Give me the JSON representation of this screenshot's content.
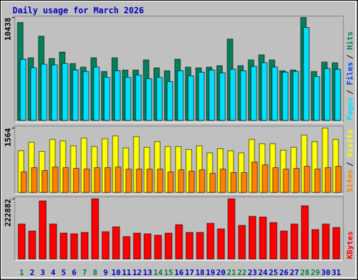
{
  "chart_data": [
    {
      "type": "bar",
      "title": "Daily usage for March 2026",
      "separator": "/",
      "categories": [
        "1",
        "2",
        "3",
        "4",
        "5",
        "6",
        "7",
        "8",
        "9",
        "10",
        "11",
        "12",
        "13",
        "14",
        "15",
        "16",
        "17",
        "18",
        "19",
        "20",
        "21",
        "22",
        "23",
        "24",
        "25",
        "26",
        "27",
        "28",
        "29",
        "30",
        "31"
      ],
      "ylim": [
        0,
        10438
      ],
      "yticks": [
        10438
      ],
      "series": [
        {
          "name": "Hits",
          "color": "#00805c",
          "values": [
            9928,
            6351,
            8541,
            6278,
            6935,
            5767,
            5402,
            6351,
            4964,
            6351,
            5110,
            5110,
            6132,
            5329,
            5037,
            6205,
            5402,
            5329,
            5402,
            5548,
            8249,
            5548,
            6132,
            6643,
            6132,
            5037,
            5110,
            10438,
            4964,
            5913,
            5840
          ]
        },
        {
          "name": "Files",
          "color": "#0040ff",
          "values": [
            6205,
            5329,
            5694,
            5621,
            5767,
            5110,
            4964,
            5402,
            4380,
            5037,
            4380,
            4599,
            4234,
            4380,
            3942,
            5037,
            4526,
            4891,
            5110,
            4818,
            5183,
            5037,
            5475,
            5840,
            5402,
            4891,
            4964,
            9417,
            4453,
            5256,
            5183
          ]
        },
        {
          "name": "Pages",
          "color": "#00e0ff",
          "values": [
            6205,
            5329,
            5694,
            5621,
            5767,
            5110,
            4964,
            5402,
            4380,
            5037,
            4380,
            4599,
            4234,
            4380,
            3942,
            5037,
            4526,
            4891,
            5110,
            4818,
            5183,
            5037,
            5475,
            5840,
            5402,
            4891,
            4964,
            9417,
            4453,
            5256,
            5183
          ]
        }
      ]
    },
    {
      "type": "bar",
      "separator": "/",
      "categories": [
        "1",
        "2",
        "3",
        "4",
        "5",
        "6",
        "7",
        "8",
        "9",
        "10",
        "11",
        "12",
        "13",
        "14",
        "15",
        "16",
        "17",
        "18",
        "19",
        "20",
        "21",
        "22",
        "23",
        "24",
        "25",
        "26",
        "27",
        "28",
        "29",
        "30",
        "31"
      ],
      "ylim": [
        0,
        1564
      ],
      "yticks": [
        1564
      ],
      "series": [
        {
          "name": "Visits",
          "color": "#ffff00",
          "values": [
            1015,
            1221,
            998,
            1290,
            1256,
            1135,
            1324,
            1118,
            1307,
            1376,
            1084,
            1359,
            1101,
            1238,
            1118,
            1118,
            1049,
            1135,
            963,
            1066,
            1015,
            963,
            1290,
            1187,
            1187,
            1032,
            1101,
            1393,
            1238,
            1564,
            1290
          ]
        },
        {
          "name": "Sites",
          "color": "#ff8000",
          "values": [
            499,
            602,
            533,
            619,
            602,
            585,
            568,
            602,
            602,
            619,
            568,
            568,
            568,
            568,
            499,
            550,
            516,
            550,
            464,
            568,
            482,
            482,
            740,
            671,
            602,
            568,
            585,
            636,
            568,
            602,
            636
          ]
        }
      ]
    },
    {
      "type": "bar",
      "categories": [
        "1",
        "2",
        "3",
        "4",
        "5",
        "6",
        "7",
        "8",
        "9",
        "10",
        "11",
        "12",
        "13",
        "14",
        "15",
        "16",
        "17",
        "18",
        "19",
        "20",
        "21",
        "22",
        "23",
        "24",
        "25",
        "26",
        "27",
        "28",
        "29",
        "30",
        "31"
      ],
      "category_colors": [
        "#008040",
        "#0000c0",
        "#0000c0",
        "#0000c0",
        "#0000c0",
        "#0000c0",
        "#008040",
        "#008040",
        "#0000c0",
        "#0000c0",
        "#0000c0",
        "#0000c0",
        "#0000c0",
        "#008040",
        "#008040",
        "#0000c0",
        "#0000c0",
        "#0000c0",
        "#0000c0",
        "#0000c0",
        "#008040",
        "#008040",
        "#0000c0",
        "#0000c0",
        "#0000c0",
        "#0000c0",
        "#0000c0",
        "#008040",
        "#008040",
        "#0000c0",
        "#0000c0"
      ],
      "ylim": [
        0,
        222882
      ],
      "yticks": [
        222882
      ],
      "series": [
        {
          "name": "KBytes",
          "color": "#ff0000",
          "values": [
            129600,
            103680,
            215136,
            129600,
            95904,
            93312,
            98496,
            222882,
            101088,
            119232,
            82944,
            95904,
            93312,
            88128,
            95904,
            127008,
            98496,
            98496,
            132192,
            111456,
            222882,
            124416,
            158112,
            155520,
            134784,
            103680,
            129600,
            196992,
            108864,
            129600,
            116640
          ]
        }
      ]
    }
  ]
}
